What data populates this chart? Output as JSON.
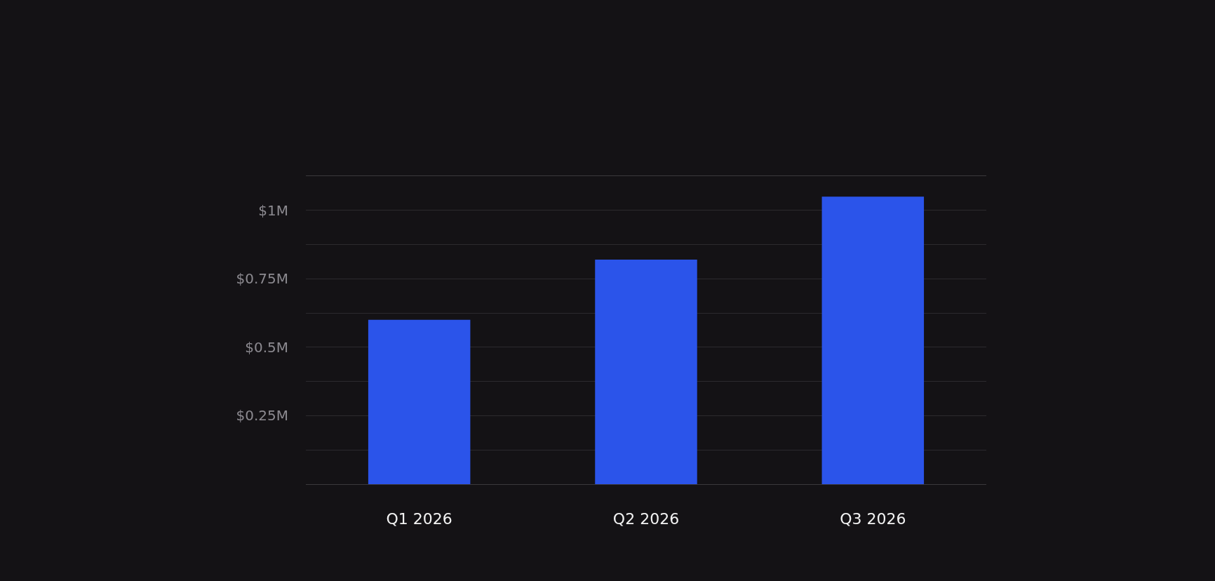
{
  "chart_data": {
    "type": "bar",
    "categories": [
      "Q1 2026",
      "Q2 2026",
      "Q3 2026"
    ],
    "values": [
      0.6,
      0.82,
      1.05
    ],
    "color": "#2b54ea",
    "ylim": [
      0,
      1.125
    ],
    "yticks": [
      {
        "value": 0,
        "label": null
      },
      {
        "value": 0.125,
        "label": null
      },
      {
        "value": 0.25,
        "label": "$0.25M"
      },
      {
        "value": 0.375,
        "label": null
      },
      {
        "value": 0.5,
        "label": "$0.5M"
      },
      {
        "value": 0.625,
        "label": null
      },
      {
        "value": 0.75,
        "label": "$0.75M"
      },
      {
        "value": 0.875,
        "label": null
      },
      {
        "value": 1,
        "label": "$1M"
      },
      {
        "value": 1.125,
        "label": null
      }
    ],
    "grid": "y"
  }
}
